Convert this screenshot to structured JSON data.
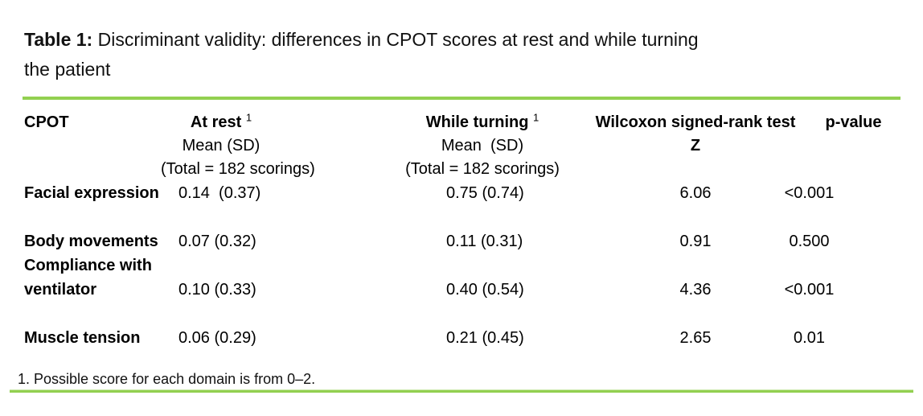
{
  "colors": {
    "rule_green": "#92d050",
    "text": "#000000",
    "background": "#ffffff"
  },
  "title": {
    "bold": "Table 1:",
    "line1_rest": " Discriminant validity: differences in CPOT scores at rest and while turning",
    "line2": "the patient"
  },
  "table": {
    "columns": {
      "cpot": "CPOT",
      "at_rest": {
        "title": "At rest",
        "superscript": "1",
        "line2": "Mean (SD)",
        "line3": "(Total = 182 scorings)"
      },
      "while_turning": {
        "title": "While turning",
        "superscript": "1",
        "line2": "Mean  (SD)",
        "line3": "(Total = 182 scorings)"
      },
      "wilcoxon": {
        "title": "Wilcoxon signed-rank test",
        "line2": "Z"
      },
      "p_value": "p-value"
    },
    "rows": [
      {
        "domain": "Facial expression",
        "at_rest": "0.14  (0.37)",
        "while_turning": "0.75 (0.74)",
        "z": "6.06",
        "p": "<0.001"
      },
      {
        "domain": "Body movements",
        "at_rest": "0.07 (0.32)",
        "while_turning": "0.11 (0.31)",
        "z": "0.91",
        "p": "0.500"
      },
      {
        "domain_line1": "Compliance with",
        "domain_line2": "ventilator",
        "at_rest": "0.10 (0.33)",
        "while_turning": "0.40 (0.54)",
        "z": "4.36",
        "p": "<0.001"
      },
      {
        "domain": "Muscle tension",
        "at_rest": "0.06 (0.29)",
        "while_turning": "0.21 (0.45)",
        "z": "2.65",
        "p": "0.01"
      }
    ]
  },
  "footnote": "1. Possible score for each domain is from 0–2."
}
